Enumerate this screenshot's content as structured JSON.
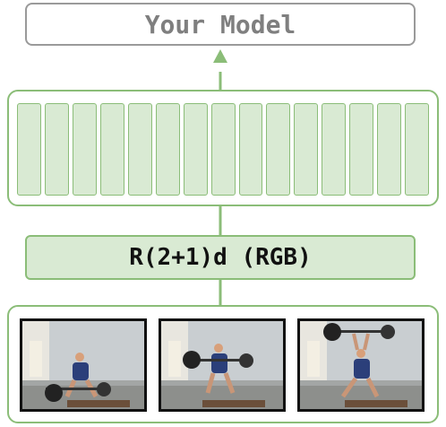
{
  "top_box": {
    "label": "Your Model"
  },
  "encoder_box": {
    "label": "R(2+1)d (RGB)"
  },
  "feature_cells": 15,
  "frames": [
    {
      "name": "frame-1"
    },
    {
      "name": "frame-2"
    },
    {
      "name": "frame-3"
    }
  ],
  "colors": {
    "green_stroke": "#8bbd78",
    "green_fill": "#d9ead3",
    "gray_stroke": "#9a9a9a",
    "gray_text": "#7f7f7f"
  }
}
